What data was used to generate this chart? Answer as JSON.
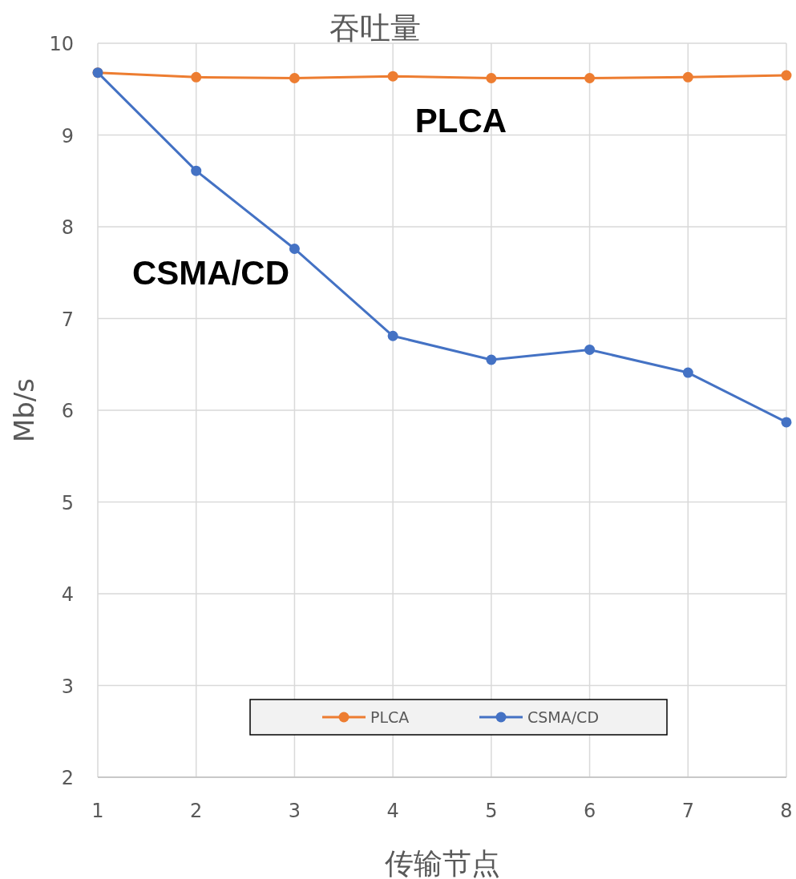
{
  "chart_data": {
    "type": "line",
    "title": "吞吐量",
    "xlabel": "传输节点",
    "ylabel": "Mb/s",
    "x": [
      1,
      2,
      3,
      4,
      5,
      6,
      7,
      8
    ],
    "series": [
      {
        "name": "PLCA",
        "color": "#ed7d31",
        "values": [
          9.68,
          9.63,
          9.62,
          9.64,
          9.62,
          9.62,
          9.63,
          9.65
        ]
      },
      {
        "name": "CSMA/CD",
        "color": "#4472c4",
        "values": [
          9.68,
          8.61,
          7.76,
          6.81,
          6.55,
          6.66,
          6.41,
          5.87
        ]
      }
    ],
    "xlim": [
      1,
      8
    ],
    "xticks": [
      1,
      2,
      3,
      4,
      5,
      6,
      7,
      8
    ],
    "ylim": [
      2,
      10
    ],
    "yticks": [
      2,
      3,
      4,
      5,
      6,
      7,
      8,
      9,
      10
    ],
    "grid": true,
    "legend": "bottom",
    "marker": "circle",
    "line_style": "solid",
    "annotations": [
      "PLCA",
      "CSMA/CD"
    ]
  }
}
